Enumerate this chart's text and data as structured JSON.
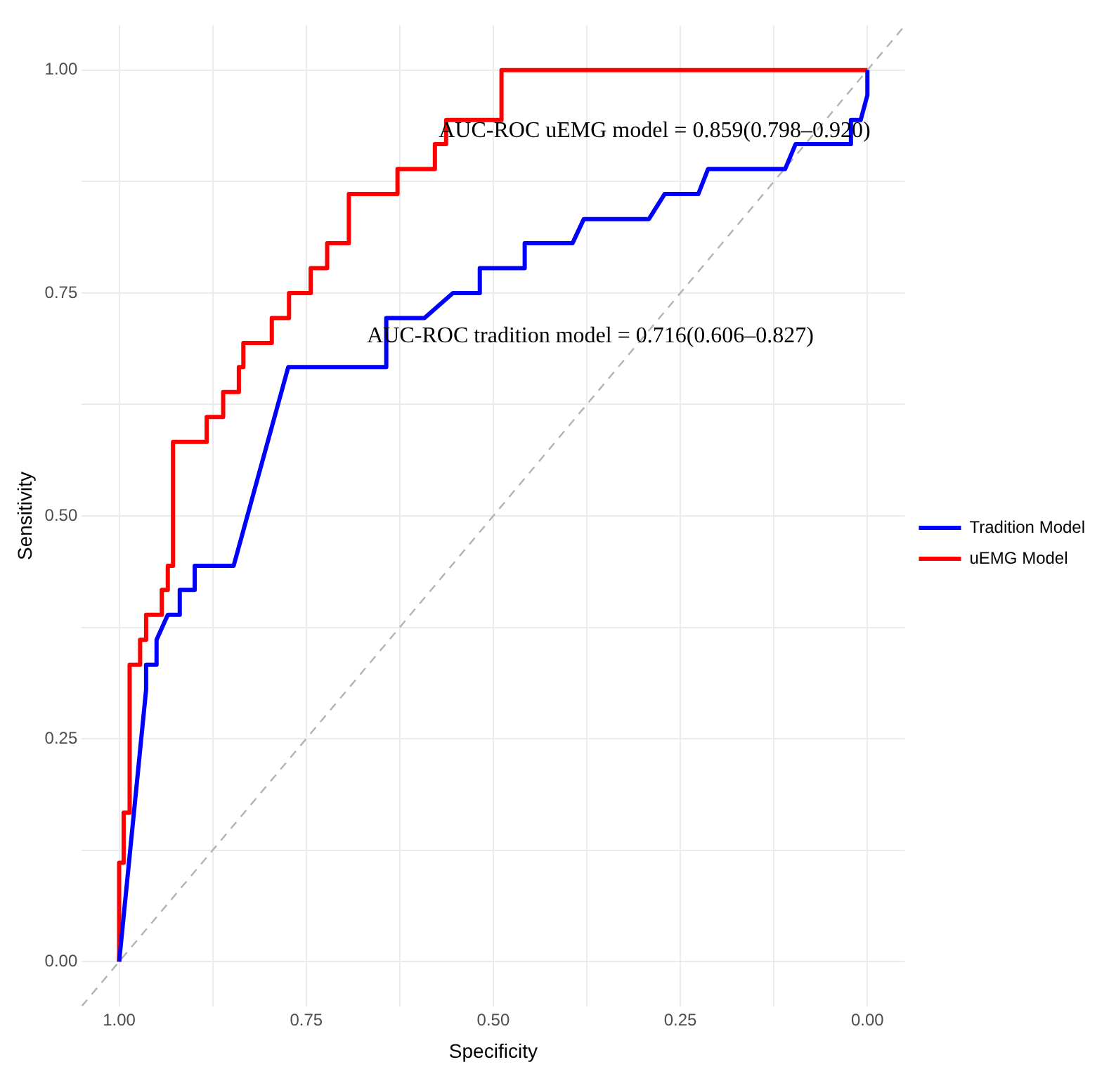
{
  "chart_data": {
    "type": "line",
    "xlabel": "Specificity",
    "ylabel": "Sensitivity",
    "xlim": [
      1.05,
      -0.05
    ],
    "ylim": [
      -0.05,
      1.05
    ],
    "xticks": [
      "1.00",
      {
        "value": 0.875,
        "label": null
      },
      {
        "value": 0.75,
        "label": "0.75"
      },
      {
        "value": 0.625,
        "label": null
      },
      {
        "value": 0.5,
        "label": "0.50"
      },
      {
        "value": 0.375,
        "label": null
      },
      {
        "value": 0.25,
        "label": "0.25"
      },
      {
        "value": 0.125,
        "label": null
      },
      {
        "value": 0,
        "label": "0.00"
      }
    ],
    "yticks": [
      {
        "value": 0,
        "label": "0.00"
      },
      {
        "value": 0.125,
        "label": null
      },
      {
        "value": 0.25,
        "label": "0.25"
      },
      {
        "value": 0.375,
        "label": null
      },
      {
        "value": 0.5,
        "label": "0.50"
      },
      {
        "value": 0.625,
        "label": null
      },
      {
        "value": 0.75,
        "label": "0.75"
      },
      {
        "value": 0.875,
        "label": null
      },
      {
        "value": 1,
        "label": "1.00"
      }
    ],
    "grid": true,
    "legend": "right",
    "line_style": "solid",
    "marker": "none",
    "series": [
      {
        "name": "Tradition Model",
        "color": "#0000ff",
        "x": [
          1,
          0.964,
          0.964,
          0.95,
          0.95,
          0.935,
          0.919,
          0.919,
          0.899,
          0.899,
          0.847,
          0.774,
          0.643,
          0.643,
          0.592,
          0.554,
          0.518,
          0.518,
          0.458,
          0.458,
          0.394,
          0.379,
          0.292,
          0.271,
          0.226,
          0.213,
          0.11,
          0.096,
          0.022,
          0.022,
          0.009,
          0,
          0
        ],
        "values": [
          0,
          0.305,
          0.333,
          0.333,
          0.361,
          0.389,
          0.389,
          0.417,
          0.417,
          0.444,
          0.444,
          0.667,
          0.667,
          0.722,
          0.722,
          0.75,
          0.75,
          0.778,
          0.778,
          0.806,
          0.806,
          0.833,
          0.833,
          0.861,
          0.861,
          0.889,
          0.889,
          0.917,
          0.917,
          0.944,
          0.944,
          0.972,
          1
        ]
      },
      {
        "name": "uEMG Model",
        "color": "#ff0000",
        "x": [
          1,
          1,
          0.994,
          0.994,
          0.986,
          0.986,
          0.972,
          0.972,
          0.964,
          0.964,
          0.943,
          0.943,
          0.935,
          0.935,
          0.928,
          0.928,
          0.883,
          0.883,
          0.861,
          0.861,
          0.84,
          0.84,
          0.834,
          0.834,
          0.796,
          0.796,
          0.773,
          0.773,
          0.744,
          0.744,
          0.722,
          0.722,
          0.693,
          0.693,
          0.628,
          0.628,
          0.578,
          0.578,
          0.563,
          0.563,
          0.489,
          0.489,
          0
        ],
        "values": [
          0,
          0.111,
          0.111,
          0.167,
          0.167,
          0.333,
          0.333,
          0.361,
          0.361,
          0.389,
          0.389,
          0.417,
          0.417,
          0.444,
          0.444,
          0.583,
          0.583,
          0.611,
          0.611,
          0.639,
          0.639,
          0.667,
          0.667,
          0.694,
          0.694,
          0.722,
          0.722,
          0.75,
          0.75,
          0.778,
          0.778,
          0.806,
          0.806,
          0.861,
          0.861,
          0.889,
          0.889,
          0.917,
          0.917,
          0.944,
          0.944,
          1,
          1
        ]
      },
      {
        "color": "#b3b3b3",
        "line_style": "dashed",
        "x": [
          1.05,
          -0.05
        ],
        "values": [
          -0.05,
          1.05
        ]
      }
    ],
    "annotations": [
      "AUC-ROC uEMG model = 0.859(0.798–0.920)",
      "AUC-ROC tradition model = 0.716(0.606–0.827)"
    ]
  }
}
